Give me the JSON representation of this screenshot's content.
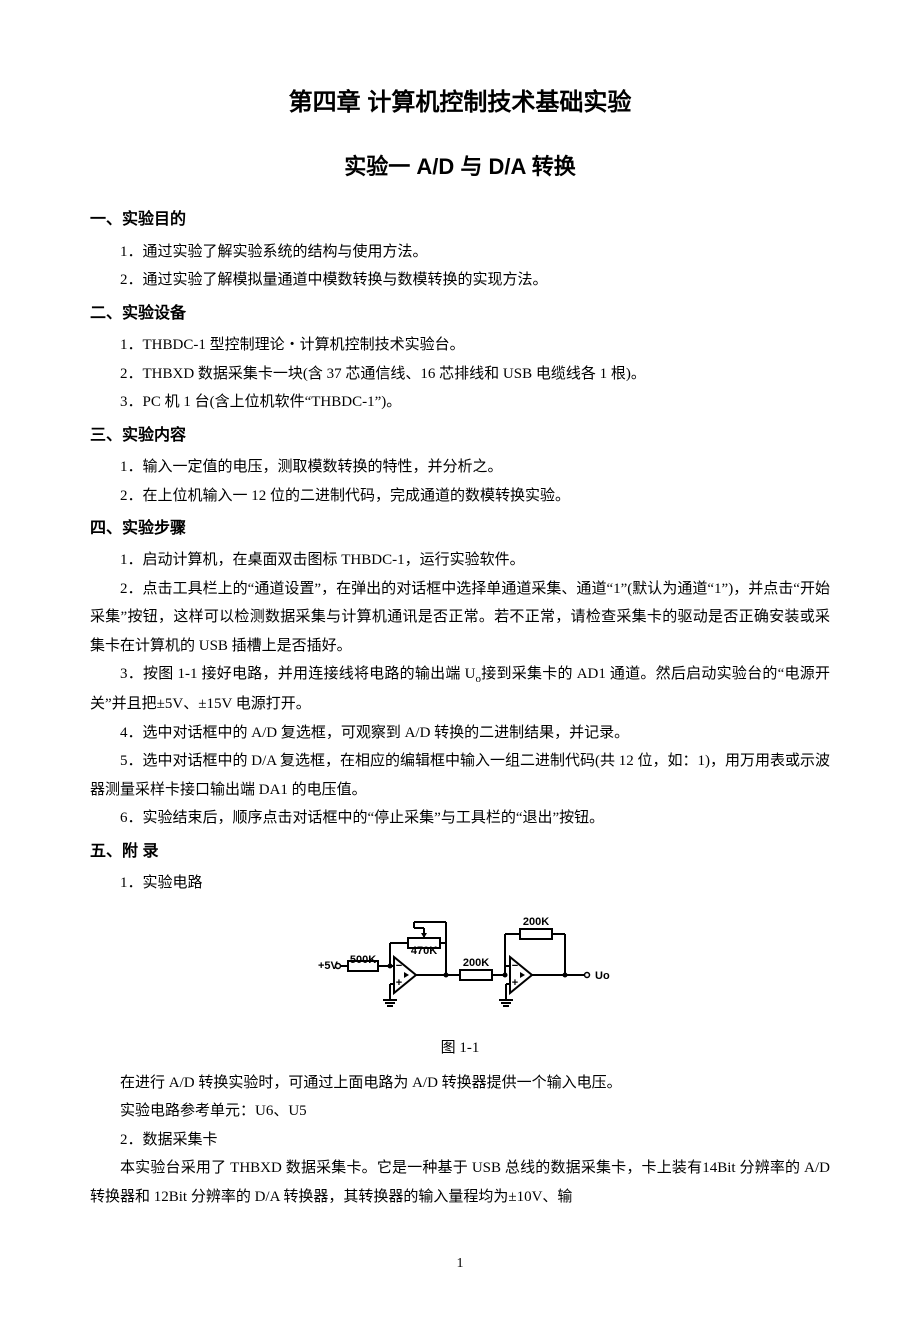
{
  "chapter_title": "第四章   计算机控制技术基础实验",
  "experiment_title": "实验一   A/D 与 D/A 转换",
  "sections": {
    "s1": {
      "heading": "一、实验目的",
      "p1": "1．通过实验了解实验系统的结构与使用方法。",
      "p2": "2．通过实验了解模拟量通道中模数转换与数模转换的实现方法。"
    },
    "s2": {
      "heading": "二、实验设备",
      "p1": "1．THBDC-1 型控制理论・计算机控制技术实验台。",
      "p2": "2．THBXD 数据采集卡一块(含 37 芯通信线、16 芯排线和 USB 电缆线各 1 根)。",
      "p3": "3．PC 机 1 台(含上位机软件“THBDC-1”)。"
    },
    "s3": {
      "heading": "三、实验内容",
      "p1": "1．输入一定值的电压，测取模数转换的特性，并分析之。",
      "p2": "2．在上位机输入一 12 位的二进制代码，完成通道的数模转换实验。"
    },
    "s4": {
      "heading": "四、实验步骤",
      "p1": "1．启动计算机，在桌面双击图标 THBDC-1，运行实验软件。",
      "p2": "2．点击工具栏上的“通道设置”，在弹出的对话框中选择单通道采集、通道“1”(默认为通道“1”)，并点击“开始采集”按钮，这样可以检测数据采集与计算机通讯是否正常。若不正常，请检查采集卡的驱动是否正确安装或采集卡在计算机的 USB 插槽上是否插好。",
      "p3a": "3．按图 1-1 接好电路，并用连接线将电路的输出端 U",
      "p3sub": "o",
      "p3b": "接到采集卡的 AD1 通道。然后启动实验台的“电源开关”并且把±5V、±15V 电源打开。",
      "p4": "4．选中对话框中的 A/D 复选框，可观察到 A/D 转换的二进制结果，并记录。",
      "p5": "5．选中对话框中的 D/A 复选框，在相应的编辑框中输入一组二进制代码(共 12 位，如：1)，用万用表或示波器测量采样卡接口输出端 DA1 的电压值。",
      "p6": "6．实验结束后，顺序点击对话框中的“停止采集”与工具栏的“退出”按钮。"
    },
    "s5": {
      "heading": "五、附  录",
      "p1": "1．实验电路",
      "figcaption": "图 1-1",
      "p2": "在进行 A/D 转换实验时，可通过上面电路为 A/D 转换器提供一个输入电压。",
      "p3": "实验电路参考单元：U6、U5",
      "p4": "2．数据采集卡",
      "p5": "本实验台采用了 THBXD 数据采集卡。它是一种基于 USB 总线的数据采集卡，卡上装有14Bit 分辨率的 A/D 转换器和 12Bit 分辨率的 D/A 转换器，其转换器的输入量程均为±10V、输"
    }
  },
  "circuit": {
    "in_label": "+5V",
    "r1_label": "500K",
    "r2_label": "470K",
    "r3_label": "200K",
    "r4_label": "200K",
    "out_label": "Uo",
    "stroke": "#000000",
    "stroke_width": 2,
    "text_font_size": 11,
    "ground_symbol": "gnd"
  },
  "page_number": "1"
}
